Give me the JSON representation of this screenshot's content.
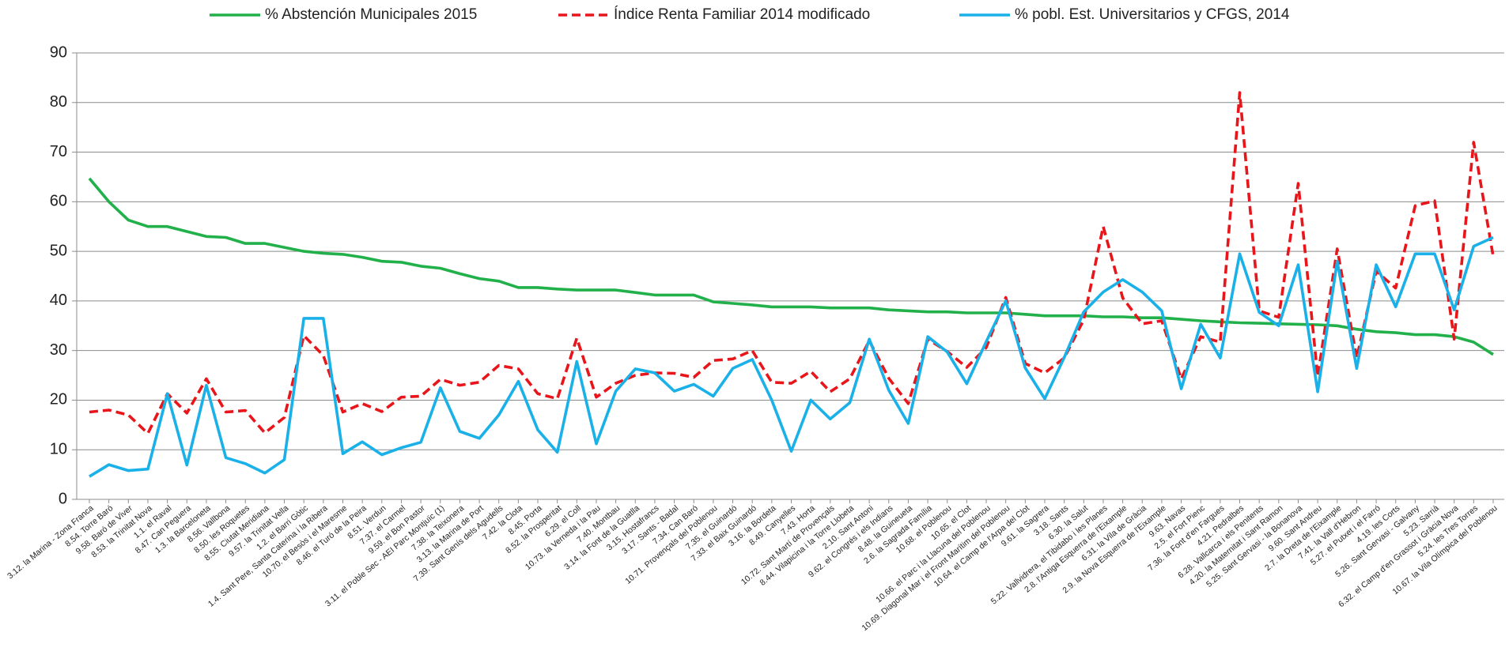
{
  "chart_data": {
    "type": "line",
    "categories": [
      "3.12. la Marina - Zona Franca",
      "8.54. Torre Baró",
      "9.58. Baró de Viver",
      "8.53. la Trinitat Nova",
      "1.1. el Raval",
      "8.47. Can Peguera",
      "1.3. la Barceloneta",
      "8.56. Vallbona",
      "8.50. les Roquetes",
      "8.55. Ciutat Meridiana",
      "9.57. la Trinitat Vella",
      "1.2. el Barri Gòtic",
      "1.4. Sant Pere, Santa Caterina i la Ribera",
      "10.70. el Besòs i el Maresme",
      "8.46. el Turó de la Peira",
      "8.51. Verdun",
      "7.37. el Carmel",
      "9.59. el Bon Pastor",
      "3.11. el Poble Sec - AEI Parc Montjuïc (1)",
      "7.38. la Teixonera",
      "3.13. la Marina de Port",
      "7.39. Sant Genís dels Agudells",
      "7.42. la Clota",
      "8.45. Porta",
      "8.52. la Prosperitat",
      "6.29. el Coll",
      "10.73. la Verneda i la Pau",
      "7.40. Montbau",
      "3.14. la Font de la Guatlla",
      "3.15. Hostafrancs",
      "3.17. Sants - Badal",
      "7.34. Can Baró",
      "10.71. Provençals del Poblenou",
      "7.35. el Guinardó",
      "7.33. el Baix Guinardó",
      "3.16. la Bordeta",
      "8.49. Canyelles",
      "7.43. Horta",
      "10.72. Sant Martí de Provençals",
      "8.44. Vilapicina i la Torre Llobeta",
      "2.10. Sant Antoni",
      "9.62. el Congrés i els Indians",
      "8.48. la Guineueta",
      "2.6. la Sagrada Família",
      "10.68. el Poblenou",
      "10.65. el Clot",
      "10.66. el Parc i la Llacuna del Poblenou",
      "10.69. Diagonal Mar i el Front Marítim del Poblenou",
      "10.64. el Camp de l'Arpa del Clot",
      "9.61. la Sagrera",
      "3.18. Sants",
      "6.30. la Salut",
      "5.22. Vallvidrera, el Tibidabo i les Planes",
      "2.8. l'Antiga Esquerra de l'Eixample",
      "6.31. la Vila de Gràcia",
      "2.9. la Nova Esquerra de l'Eixample",
      "9.63. Navas",
      "2.5. el Fort Pienc",
      "7.36. la Font d'en Fargues",
      "4.21. Pedralbes",
      "6.28. Vallcarca i els Penitents",
      "4.20. la Maternitat i Sant Ramon",
      "5.25. Sant Gervasi - la Bonanova",
      "9.60. Sant Andreu",
      "2.7. la Dreta de l'Eixample",
      "7.41. la Vall d'Hebron",
      "5.27. el Putxet i el Farró",
      "4.19. les Corts",
      "5.26. Sant Gervasi - Galvany",
      "5.23. Sarrià",
      "6.32. el Camp d'en Grassot i Gràcia Nova",
      "5.24. les Tres Torres",
      "10.67. la Vila Olímpica del Poblenou"
    ],
    "series": [
      {
        "name": "% Abstención Municipales 2015",
        "color": "#22b04b",
        "dashed": false,
        "values": [
          64.7,
          60,
          56.3,
          55,
          55,
          54,
          53,
          52.8,
          51.6,
          51.6,
          50.8,
          50,
          49.6,
          49.4,
          48.8,
          48,
          47.8,
          47,
          46.6,
          45.5,
          44.5,
          44,
          42.7,
          42.7,
          42.4,
          42.2,
          42.2,
          42.2,
          41.7,
          41.2,
          41.2,
          41.2,
          39.8,
          39.5,
          39.2,
          38.8,
          38.8,
          38.8,
          38.6,
          38.6,
          38.6,
          38.2,
          38,
          37.8,
          37.8,
          37.6,
          37.6,
          37.6,
          37.3,
          37,
          37,
          37,
          36.8,
          36.8,
          36.6,
          36.6,
          36.3,
          36,
          35.8,
          35.6,
          35.5,
          35.4,
          35.3,
          35.2,
          35,
          34.3,
          33.8,
          33.6,
          33.2,
          33.2,
          32.8,
          31.7,
          29.2
        ]
      },
      {
        "name": "Índice Renta Familiar 2014 modificado",
        "color": "#e8161b",
        "dashed": true,
        "values": [
          17.6,
          18,
          17,
          13.3,
          21.3,
          17.4,
          24.3,
          17.6,
          17.9,
          13.4,
          16.5,
          33,
          29,
          17.6,
          19.3,
          17.7,
          20.6,
          20.8,
          24.2,
          23,
          23.6,
          27,
          26.3,
          21.3,
          20.3,
          32.5,
          20.6,
          23.4,
          25,
          25.5,
          25.4,
          24.6,
          28,
          28.3,
          30,
          23.6,
          23.4,
          25.8,
          21.7,
          24.3,
          32,
          24.4,
          19.3,
          32.3,
          29.8,
          26.6,
          30.6,
          40.7,
          27.4,
          25.5,
          28.5,
          36.2,
          55,
          40.6,
          35.4,
          36,
          24.3,
          32.8,
          31.7,
          82,
          38,
          36.7,
          63.7,
          24.8,
          50.5,
          28.5,
          46,
          42.6,
          59.2,
          60.2,
          32.3,
          72,
          49
        ]
      },
      {
        "name": "% pobl. Est. Universitarios y CFGS, 2014",
        "color": "#1ab0e8",
        "dashed": false,
        "values": [
          4.6,
          7,
          5.8,
          6.1,
          21.3,
          6.9,
          23,
          8.4,
          7.2,
          5.3,
          8,
          36.5,
          36.5,
          9.2,
          11.6,
          9,
          10.4,
          11.5,
          22.5,
          13.7,
          12.3,
          17,
          23.8,
          14,
          9.5,
          27.8,
          11.2,
          21.8,
          26.3,
          25.5,
          21.8,
          23.2,
          20.8,
          26.4,
          28.2,
          20,
          9.7,
          20,
          16.2,
          19.5,
          32.3,
          22,
          15.3,
          32.8,
          29.7,
          23.3,
          31.8,
          40,
          26.5,
          20.3,
          28.6,
          37.8,
          41.8,
          44.3,
          41.8,
          38,
          22.3,
          35.3,
          28.5,
          49.5,
          37.7,
          35,
          47.3,
          21.7,
          48,
          26.4,
          47.3,
          38.8,
          49.5,
          49.5,
          38.2,
          51,
          52.8
        ]
      }
    ],
    "ylim": [
      0,
      90
    ],
    "yticks": [
      0,
      10,
      20,
      30,
      40,
      50,
      60,
      70,
      80,
      90
    ],
    "grid": true,
    "legend": "top"
  }
}
